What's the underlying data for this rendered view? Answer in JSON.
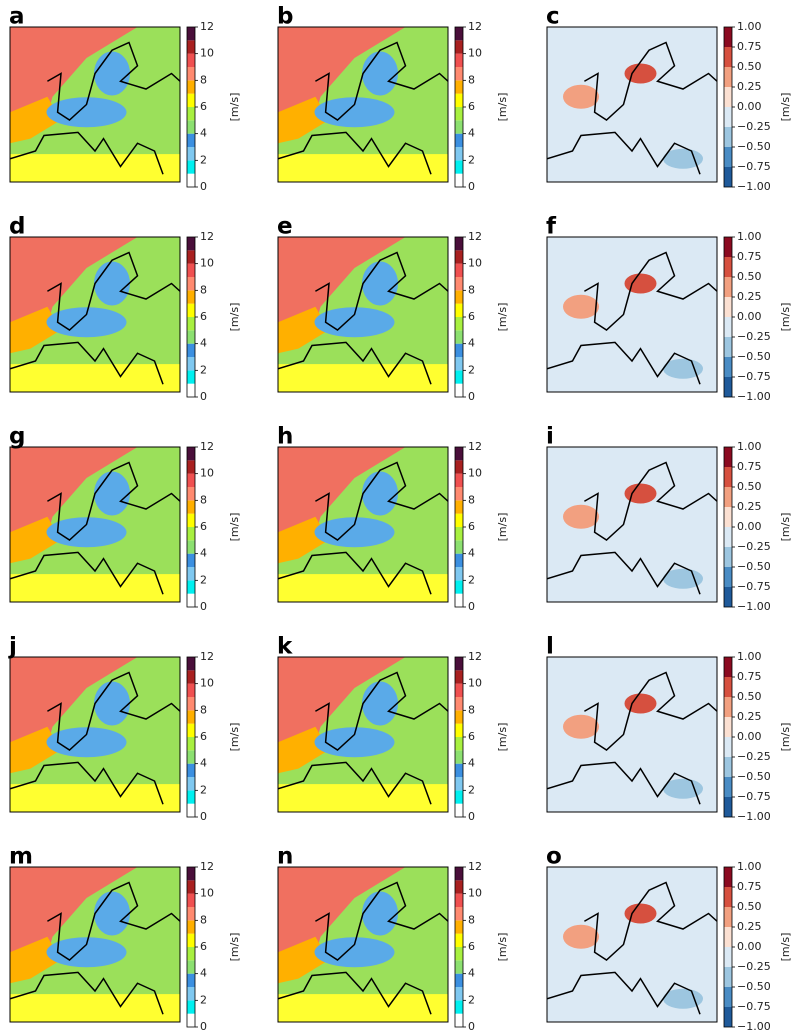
{
  "wind_colors": [
    "#ffffff",
    "#00f0f0",
    "#7fc8f0",
    "#3b8fe0",
    "#8ce070",
    "#a8f040",
    "#ffff00",
    "#ffb000",
    "#ff8a70",
    "#ef5050",
    "#a82020",
    "#4a0f3a"
  ],
  "difference_colors": [
    "#1f5a9a",
    "#4a8cc4",
    "#9dc6e0",
    "#dbe9f4",
    "#fbe0d2",
    "#f2a080",
    "#d6503f",
    "#8b0a20"
  ],
  "panels": [
    {
      "label": "a",
      "kind": "wind",
      "colorbar": {
        "lim": [
          0,
          12
        ],
        "ticks": [
          0,
          2,
          4,
          6,
          8,
          10,
          12
        ],
        "unit_label": "[m/s]"
      }
    },
    {
      "label": "b",
      "kind": "wind",
      "colorbar": {
        "lim": [
          0,
          12
        ],
        "ticks": [
          0,
          2,
          4,
          6,
          8,
          10,
          12
        ],
        "unit_label": "[m/s]"
      }
    },
    {
      "label": "c",
      "kind": "difference",
      "colorbar": {
        "lim": [
          -1,
          1
        ],
        "ticks": [
          {
            "value": -1,
            "label": "−1.00"
          },
          {
            "value": -0.75,
            "label": "−0.75"
          },
          {
            "value": -0.5,
            "label": "−0.50"
          },
          {
            "value": -0.25,
            "label": "−0.25"
          },
          {
            "value": 0,
            "label": "0.00"
          },
          {
            "value": 0.25,
            "label": "0.25"
          },
          {
            "value": 0.5,
            "label": "0.50"
          },
          {
            "value": 0.75,
            "label": "0.75"
          },
          {
            "value": 1,
            "label": "1.00"
          }
        ],
        "unit_label": "[m/s]"
      }
    },
    {
      "label": "d",
      "kind": "wind",
      "colorbar": {
        "lim": [
          0,
          12
        ],
        "ticks": [
          0,
          2,
          4,
          6,
          8,
          10,
          12
        ],
        "unit_label": "[m/s]"
      }
    },
    {
      "label": "e",
      "kind": "wind",
      "colorbar": {
        "lim": [
          0,
          12
        ],
        "ticks": [
          0,
          2,
          4,
          6,
          8,
          10,
          12
        ],
        "unit_label": "[m/s]"
      }
    },
    {
      "label": "f",
      "kind": "difference",
      "colorbar": {
        "lim": [
          -1,
          1
        ],
        "ticks": [
          {
            "value": -1,
            "label": "−1.00"
          },
          {
            "value": -0.75,
            "label": "−0.75"
          },
          {
            "value": -0.5,
            "label": "−0.50"
          },
          {
            "value": -0.25,
            "label": "−0.25"
          },
          {
            "value": 0,
            "label": "0.00"
          },
          {
            "value": 0.25,
            "label": "0.25"
          },
          {
            "value": 0.5,
            "label": "0.50"
          },
          {
            "value": 0.75,
            "label": "0.75"
          },
          {
            "value": 1,
            "label": "1.00"
          }
        ],
        "unit_label": "[m/s]"
      }
    },
    {
      "label": "g",
      "kind": "wind",
      "colorbar": {
        "lim": [
          0,
          12
        ],
        "ticks": [
          0,
          2,
          4,
          6,
          8,
          10,
          12
        ],
        "unit_label": "[m/s]"
      }
    },
    {
      "label": "h",
      "kind": "wind",
      "colorbar": {
        "lim": [
          0,
          12
        ],
        "ticks": [
          0,
          2,
          4,
          6,
          8,
          10,
          12
        ],
        "unit_label": "[m/s]"
      }
    },
    {
      "label": "i",
      "kind": "difference",
      "colorbar": {
        "lim": [
          -1,
          1
        ],
        "ticks": [
          {
            "value": -1,
            "label": "−1.00"
          },
          {
            "value": -0.75,
            "label": "−0.75"
          },
          {
            "value": -0.5,
            "label": "−0.50"
          },
          {
            "value": -0.25,
            "label": "−0.25"
          },
          {
            "value": 0,
            "label": "0.00"
          },
          {
            "value": 0.25,
            "label": "0.25"
          },
          {
            "value": 0.5,
            "label": "0.50"
          },
          {
            "value": 0.75,
            "label": "0.75"
          },
          {
            "value": 1,
            "label": "1.00"
          }
        ],
        "unit_label": "[m/s]"
      }
    },
    {
      "label": "j",
      "kind": "wind",
      "colorbar": {
        "lim": [
          0,
          12
        ],
        "ticks": [
          0,
          2,
          4,
          6,
          8,
          10,
          12
        ],
        "unit_label": "[m/s]"
      }
    },
    {
      "label": "k",
      "kind": "wind",
      "colorbar": {
        "lim": [
          0,
          12
        ],
        "ticks": [
          0,
          2,
          4,
          6,
          8,
          10,
          12
        ],
        "unit_label": "[m/s]"
      }
    },
    {
      "label": "l",
      "kind": "difference",
      "colorbar": {
        "lim": [
          -1,
          1
        ],
        "ticks": [
          {
            "value": -1,
            "label": "−1.00"
          },
          {
            "value": -0.75,
            "label": "−0.75"
          },
          {
            "value": -0.5,
            "label": "−0.50"
          },
          {
            "value": -0.25,
            "label": "−0.25"
          },
          {
            "value": 0,
            "label": "0.00"
          },
          {
            "value": 0.25,
            "label": "0.25"
          },
          {
            "value": 0.5,
            "label": "0.50"
          },
          {
            "value": 0.75,
            "label": "0.75"
          },
          {
            "value": 1,
            "label": "1.00"
          }
        ],
        "unit_label": "[m/s]"
      }
    },
    {
      "label": "m",
      "kind": "wind",
      "colorbar": {
        "lim": [
          0,
          12
        ],
        "ticks": [
          0,
          2,
          4,
          6,
          8,
          10,
          12
        ],
        "unit_label": "[m/s]"
      }
    },
    {
      "label": "n",
      "kind": "wind",
      "colorbar": {
        "lim": [
          0,
          12
        ],
        "ticks": [
          0,
          2,
          4,
          6,
          8,
          10,
          12
        ],
        "unit_label": "[m/s]"
      }
    },
    {
      "label": "o",
      "kind": "difference",
      "colorbar": {
        "lim": [
          -1,
          1
        ],
        "ticks": [
          {
            "value": -1,
            "label": "−1.00"
          },
          {
            "value": -0.75,
            "label": "−0.75"
          },
          {
            "value": -0.5,
            "label": "−0.50"
          },
          {
            "value": -0.25,
            "label": "−0.25"
          },
          {
            "value": 0,
            "label": "0.00"
          },
          {
            "value": 0.25,
            "label": "0.25"
          },
          {
            "value": 0.5,
            "label": "0.50"
          },
          {
            "value": 0.75,
            "label": "0.75"
          },
          {
            "value": 1,
            "label": "1.00"
          }
        ],
        "unit_label": "[m/s]"
      }
    }
  ]
}
